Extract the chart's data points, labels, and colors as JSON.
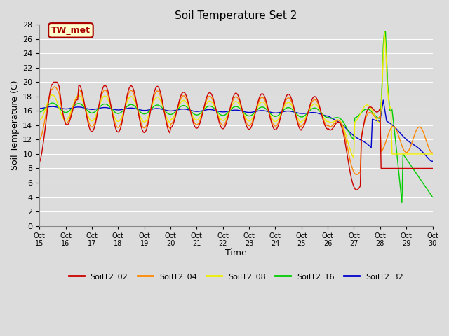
{
  "title": "Soil Temperature Set 2",
  "xlabel": "Time",
  "ylabel": "Soil Temperature (C)",
  "ylim": [
    0,
    28
  ],
  "yticks": [
    0,
    2,
    4,
    6,
    8,
    10,
    12,
    14,
    16,
    18,
    20,
    22,
    24,
    26,
    28
  ],
  "bg_color": "#dcdcdc",
  "plot_bg_color": "#dcdcdc",
  "grid_color": "#ffffff",
  "series_colors": {
    "SoilT2_02": "#cc0000",
    "SoilT2_04": "#ff8800",
    "SoilT2_08": "#eeee00",
    "SoilT2_16": "#00cc00",
    "SoilT2_32": "#0000cc"
  },
  "xtick_labels": [
    "Oct\n15",
    "Oct\n16",
    "Oct\n17",
    "Oct\n18",
    "Oct\n19",
    "Oct\n20",
    "Oct\n21",
    "Oct\n22",
    "Oct\n23",
    "Oct\n24",
    "Oct\n25",
    "Oct\n26",
    "Oct\n27",
    "Oct\n28",
    "Oct\n29",
    "Oct\n30"
  ],
  "annotation_text": "TW_met",
  "annotation_box_color": "#ffffcc",
  "annotation_border_color": "#aa0000",
  "annotation_text_color": "#aa0000",
  "linewidth": 1.0
}
